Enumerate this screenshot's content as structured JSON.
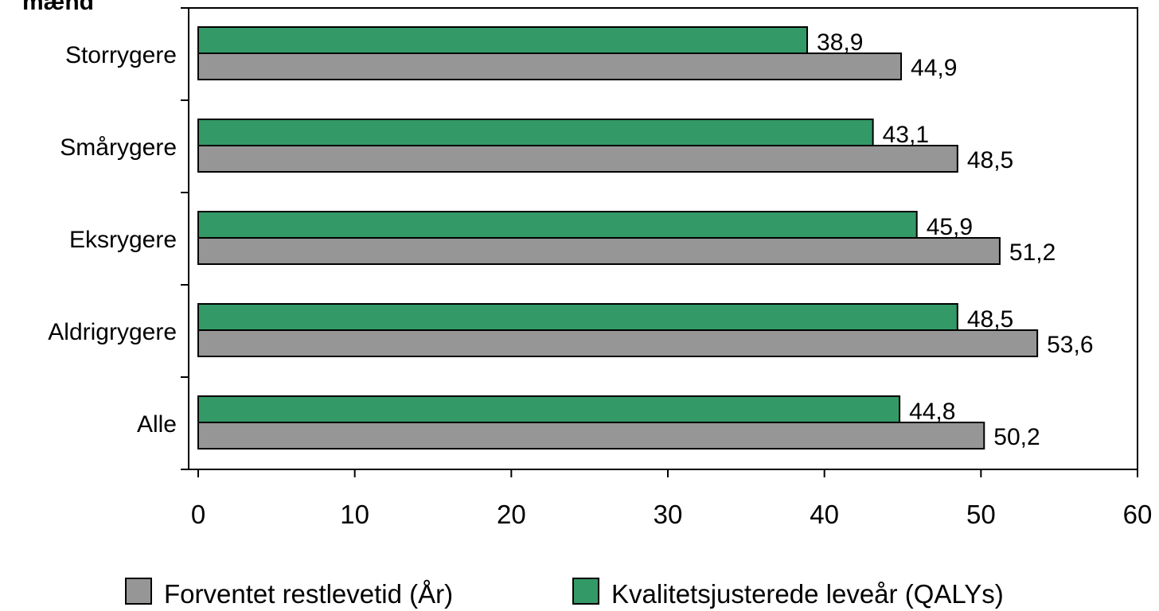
{
  "chart_data": {
    "type": "bar",
    "orientation": "horizontal",
    "title": "mænd",
    "categories": [
      "Storrygere",
      "Smårygere",
      "Eksrygere",
      "Aldrigrygere",
      "Alle"
    ],
    "series": [
      {
        "name": "Forventet restlevetid (År)",
        "color": "#969696",
        "values": [
          44.9,
          48.5,
          51.2,
          53.6,
          50.2
        ],
        "value_labels": [
          "44,9",
          "48,5",
          "51,2",
          "53,6",
          "50,2"
        ]
      },
      {
        "name": "Kvalitetsjusterede leveår (QALYs)",
        "color": "#339966",
        "values": [
          38.9,
          43.1,
          45.9,
          48.5,
          44.8
        ],
        "value_labels": [
          "38,9",
          "43,1",
          "45,9",
          "48,5",
          "44,8"
        ]
      }
    ],
    "xlim": [
      0,
      60
    ],
    "xticks": [
      0,
      10,
      20,
      30,
      40,
      50,
      60
    ],
    "legend": "bottom"
  }
}
